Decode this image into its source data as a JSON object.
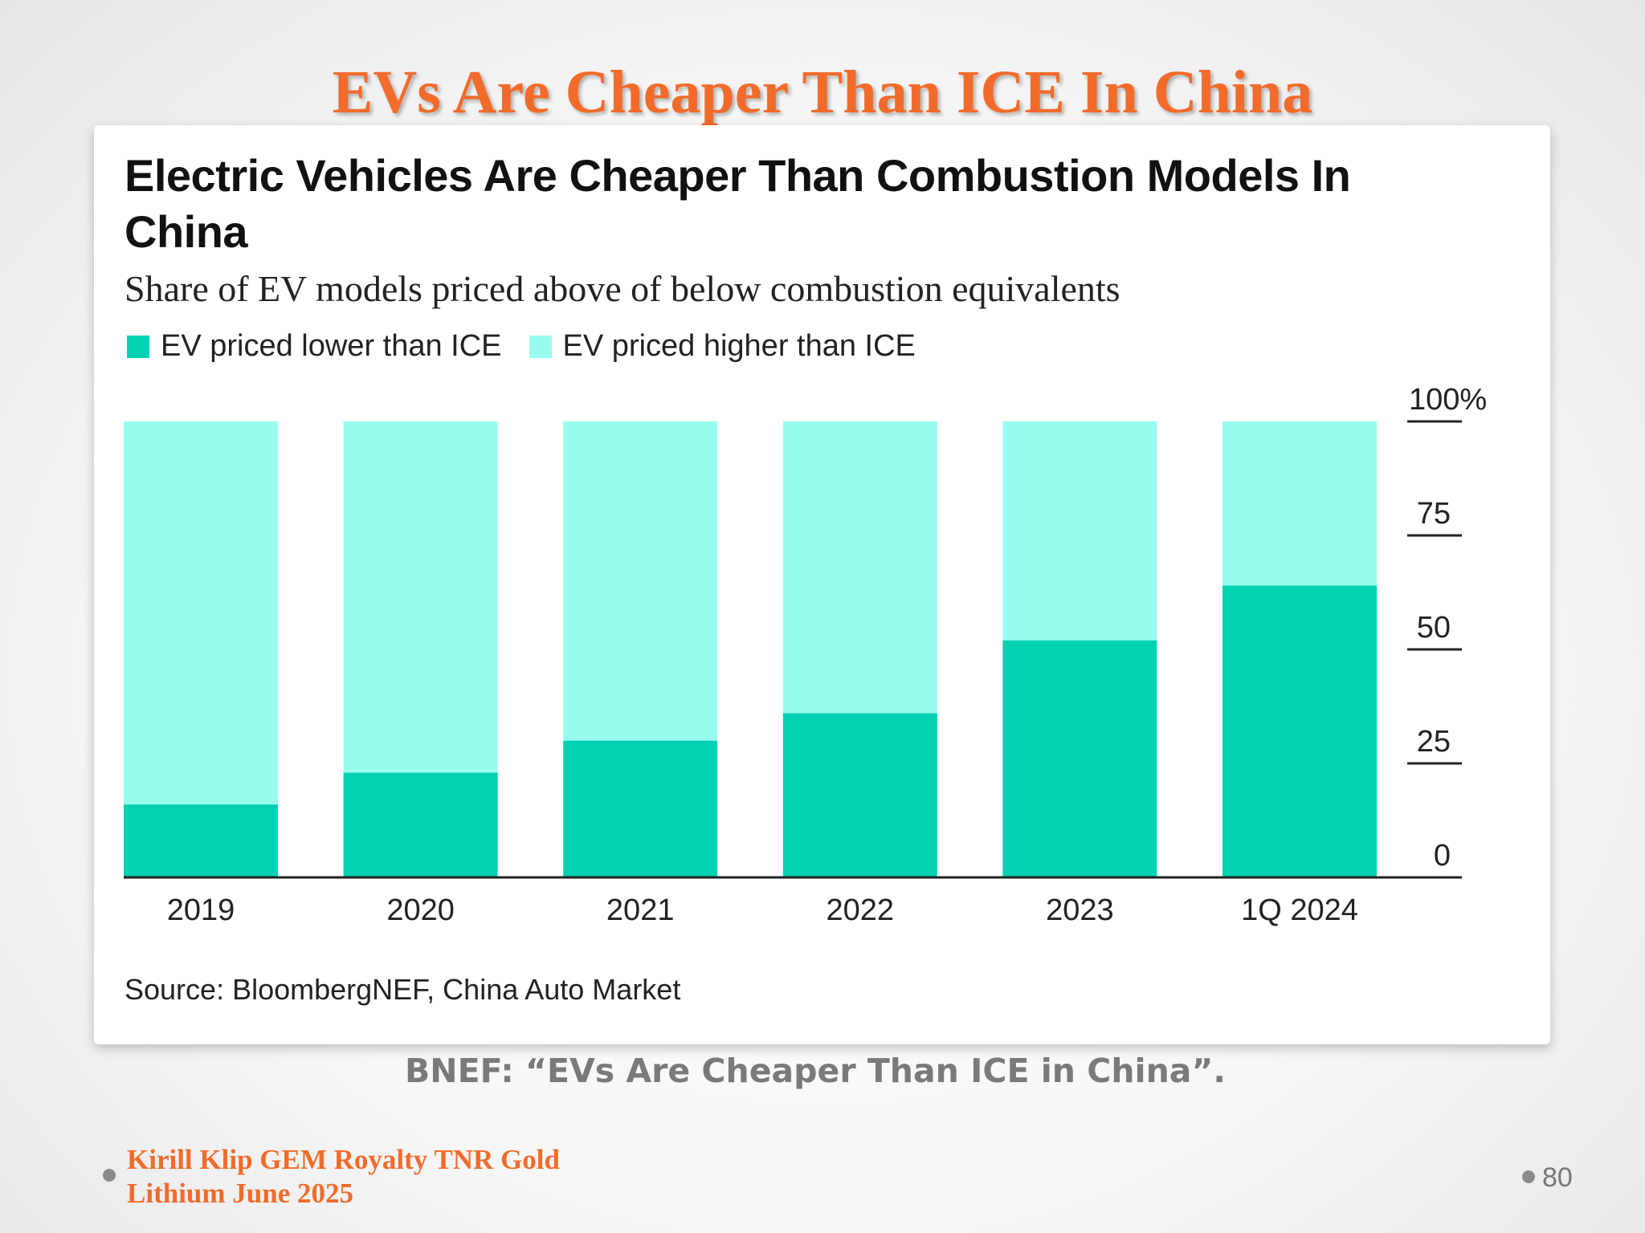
{
  "slide": {
    "title": "EVs Are Cheaper Than ICE In China",
    "caption": "BNEF: “EVs Are Cheaper Than ICE in China”.",
    "author_line1": "Kirill Klip GEM Royalty TNR Gold",
    "author_line2": "Lithium June 2025",
    "page_number": "80"
  },
  "chart_data": {
    "type": "bar",
    "stacked": true,
    "title": "Electric Vehicles Are Cheaper Than Combustion Models In China",
    "subtitle": "Share of EV models priced above of below combustion equivalents",
    "source": "Source: BloombergNEF, China Auto Market",
    "categories": [
      "2019",
      "2020",
      "2021",
      "2022",
      "2023",
      "1Q 2024"
    ],
    "series": [
      {
        "name": "EV priced lower than ICE",
        "color": "#00d1b2",
        "values": [
          16,
          23,
          30,
          36,
          52,
          64
        ]
      },
      {
        "name": "EV priced higher than ICE",
        "color": "#98fdee",
        "values": [
          84,
          77,
          70,
          64,
          48,
          36
        ]
      }
    ],
    "yaxis": {
      "ticks": [
        0,
        25,
        50,
        75,
        100
      ],
      "tick_labels": [
        "0",
        "25",
        "50",
        "75",
        "100%"
      ],
      "position": "right",
      "ylim": [
        0,
        100
      ]
    },
    "legend_position": "top-left",
    "grid": false
  }
}
